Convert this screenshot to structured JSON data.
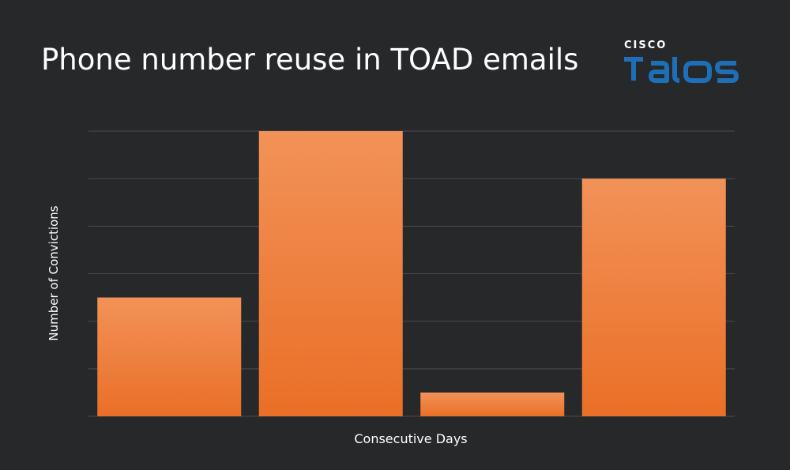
{
  "logo": {
    "wordmark_top": "CISCO",
    "wordmark_bottom": "TALOS",
    "brand_color": "#1d6fb8"
  },
  "chart_data": {
    "type": "bar",
    "title": "Phone number reuse in TOAD emails",
    "xlabel": "Consecutive Days",
    "ylabel": "Number of Convictions",
    "categories": [
      "",
      "",
      "",
      ""
    ],
    "values": [
      2.5,
      6,
      0.5,
      5
    ],
    "ylim": [
      0,
      6
    ],
    "grid": true,
    "legend": "none",
    "bar_color_top": "#f29258",
    "bar_color_bottom": "#ea6f27",
    "grid_color": "#4a4b4d",
    "background": "#27282a"
  }
}
